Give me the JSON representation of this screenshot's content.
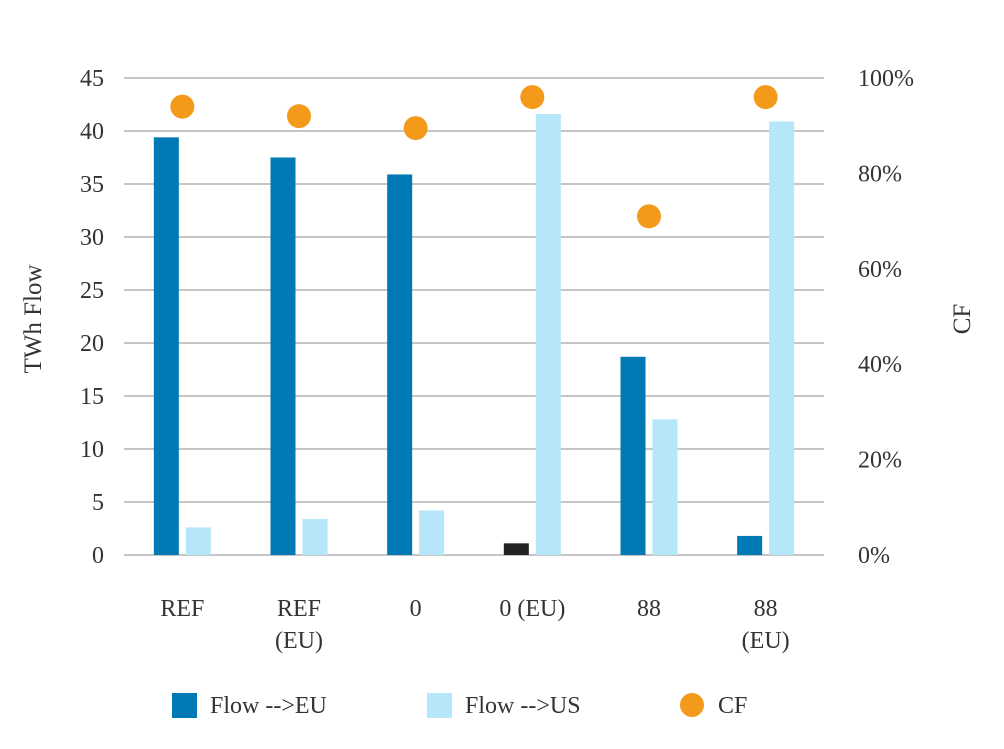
{
  "chart_data": {
    "type": "bar",
    "categories": [
      [
        "REF"
      ],
      [
        "REF",
        "(EU)"
      ],
      [
        "0"
      ],
      [
        "0 (EU)"
      ],
      [
        "88"
      ],
      [
        "88",
        "(EU)"
      ]
    ],
    "series": [
      {
        "name": "Flow -->EU",
        "kind": "bar",
        "axis": "left",
        "color": "#0079B4",
        "values": [
          39.4,
          37.5,
          35.9,
          0,
          18.7,
          1.8
        ]
      },
      {
        "name": "Flow -->US",
        "kind": "bar",
        "axis": "left",
        "color": "#B5E6F9",
        "values": [
          2.6,
          3.4,
          4.2,
          41.6,
          12.8,
          40.9
        ]
      },
      {
        "name": "CF",
        "kind": "scatter",
        "axis": "right",
        "color": "#F39A1B",
        "values": [
          0.94,
          0.92,
          0.895,
          0.96,
          0.71,
          0.96
        ]
      }
    ],
    "anomaly": {
      "category_index": 3,
      "value": 1.1,
      "color": "#222222"
    },
    "ylabel": "TWh Flow",
    "y2label": "CF",
    "ylim": [
      0,
      45
    ],
    "yticks": [
      0,
      5,
      10,
      15,
      20,
      25,
      30,
      35,
      40,
      45
    ],
    "y2lim": [
      0,
      1
    ],
    "y2ticks": [
      "0%",
      "20%",
      "40%",
      "60%",
      "80%",
      "100%"
    ],
    "grid": true,
    "legend_position": "bottom"
  }
}
